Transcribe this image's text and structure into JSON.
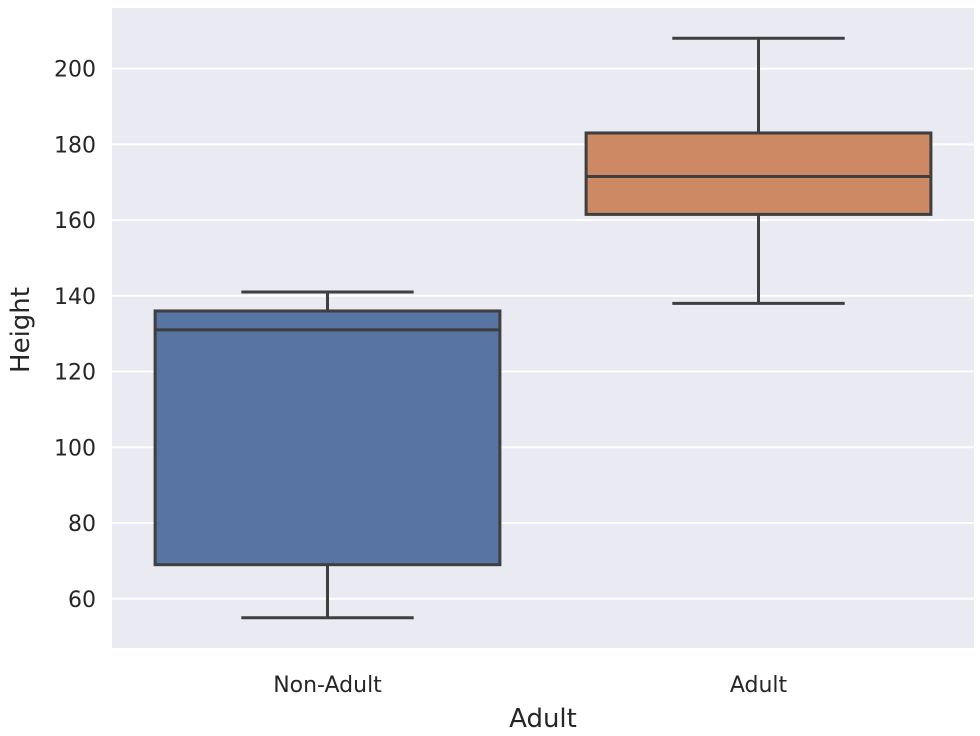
{
  "chart_data": {
    "type": "box",
    "xlabel": "Adult",
    "ylabel": "Height",
    "ylim": [
      47,
      216
    ],
    "yticks": [
      60,
      80,
      100,
      120,
      140,
      160,
      180,
      200
    ],
    "grid": true,
    "categories": [
      "Non-Adult",
      "Adult"
    ],
    "boxes": [
      {
        "category": "Non-Adult",
        "whisker_low": 55,
        "q1": 69,
        "median": 131,
        "q3": 136,
        "whisker_high": 141,
        "color": "#5874a2"
      },
      {
        "category": "Adult",
        "whisker_low": 138,
        "q1": 161.5,
        "median": 171.5,
        "q3": 183,
        "whisker_high": 208,
        "color": "#cc8963"
      }
    ],
    "colors": {
      "background": "#eaeaf2",
      "grid": "#ffffff",
      "edge": "#3f3f3f",
      "text": "#262626"
    }
  }
}
